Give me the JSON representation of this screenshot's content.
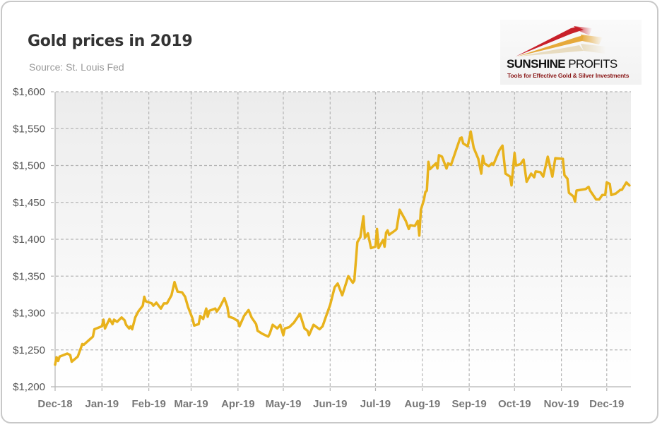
{
  "chart_data": {
    "type": "line",
    "title": "Gold prices in 2019",
    "subtitle": "Source: St. Louis Fed",
    "xlabel": "",
    "ylabel": "",
    "ylim": [
      1200,
      1600
    ],
    "xlim": [
      "2018-12-01",
      "2019-12-17"
    ],
    "y_ticks": [
      "$1,200",
      "$1,250",
      "$1,300",
      "$1,350",
      "$1,400",
      "$1,450",
      "$1,500",
      "$1,550",
      "$1,600"
    ],
    "y_tick_values": [
      1200,
      1250,
      1300,
      1350,
      1400,
      1450,
      1500,
      1550,
      1600
    ],
    "x_ticks": [
      "Dec-18",
      "Jan-19",
      "Feb-19",
      "Mar-19",
      "Apr-19",
      "May-19",
      "Jun-19",
      "Jul-19",
      "Aug-19",
      "Sep-19",
      "Oct-19",
      "Nov-19",
      "Dec-19"
    ],
    "x_tick_dates": [
      "2018-12-01",
      "2019-01-01",
      "2019-02-01",
      "2019-03-01",
      "2019-04-01",
      "2019-05-01",
      "2019-06-01",
      "2019-07-01",
      "2019-08-01",
      "2019-09-01",
      "2019-10-01",
      "2019-11-01",
      "2019-12-01"
    ],
    "grid": true,
    "legend": "none",
    "series_color": "#e8b21c",
    "series": [
      {
        "x": [
          "2018-12-01",
          "2018-12-02",
          "2018-12-03",
          "2018-12-04",
          "2018-12-09",
          "2018-12-11",
          "2018-12-12",
          "2018-12-16",
          "2018-12-19",
          "2018-12-20",
          "2018-12-26",
          "2018-12-27",
          "2019-01-01",
          "2019-01-02",
          "2019-01-03",
          "2019-01-06",
          "2019-01-08",
          "2019-01-09",
          "2019-01-11",
          "2019-01-14",
          "2019-01-16",
          "2019-01-17",
          "2019-01-19",
          "2019-01-20",
          "2019-01-21",
          "2019-01-23",
          "2019-01-25",
          "2019-01-28",
          "2019-01-29",
          "2019-01-30",
          "2019-02-03",
          "2019-02-04",
          "2019-02-06",
          "2019-02-09",
          "2019-02-11",
          "2019-02-13",
          "2019-02-16",
          "2019-02-18",
          "2019-02-20",
          "2019-02-23",
          "2019-02-25",
          "2019-02-27",
          "2019-03-02",
          "2019-03-03",
          "2019-03-06",
          "2019-03-07",
          "2019-03-09",
          "2019-03-11",
          "2019-03-12",
          "2019-03-13",
          "2019-03-17",
          "2019-03-18",
          "2019-03-20",
          "2019-03-23",
          "2019-03-25",
          "2019-03-26",
          "2019-03-29",
          "2019-04-01",
          "2019-04-02",
          "2019-04-05",
          "2019-04-08",
          "2019-04-10",
          "2019-04-13",
          "2019-04-14",
          "2019-04-17",
          "2019-04-21",
          "2019-04-22",
          "2019-04-24",
          "2019-04-27",
          "2019-04-29",
          "2019-05-01",
          "2019-05-02",
          "2019-05-05",
          "2019-05-08",
          "2019-05-12",
          "2019-05-15",
          "2019-05-17",
          "2019-05-18",
          "2019-05-21",
          "2019-05-25",
          "2019-05-27",
          "2019-05-29",
          "2019-06-01",
          "2019-06-04",
          "2019-06-06",
          "2019-06-09",
          "2019-06-13",
          "2019-06-16",
          "2019-06-17",
          "2019-06-19",
          "2019-06-21",
          "2019-06-23",
          "2019-06-24",
          "2019-06-26",
          "2019-06-28",
          "2019-07-01",
          "2019-07-02",
          "2019-07-03",
          "2019-07-06",
          "2019-07-07",
          "2019-07-08",
          "2019-07-09",
          "2019-07-10",
          "2019-07-14",
          "2019-07-15",
          "2019-07-17",
          "2019-07-21",
          "2019-07-23",
          "2019-07-24",
          "2019-07-27",
          "2019-07-29",
          "2019-07-30",
          "2019-07-31",
          "2019-08-02",
          "2019-08-03",
          "2019-08-04",
          "2019-08-05",
          "2019-08-06",
          "2019-08-10",
          "2019-08-11",
          "2019-08-12",
          "2019-08-14",
          "2019-08-17",
          "2019-08-18",
          "2019-08-20",
          "2019-08-26",
          "2019-08-27",
          "2019-08-28",
          "2019-08-31",
          "2019-09-02",
          "2019-09-04",
          "2019-09-07",
          "2019-09-09",
          "2019-09-10",
          "2019-09-11",
          "2019-09-14",
          "2019-09-16",
          "2019-09-17",
          "2019-09-21",
          "2019-09-23",
          "2019-09-25",
          "2019-09-28",
          "2019-09-29",
          "2019-10-01",
          "2019-10-02",
          "2019-10-05",
          "2019-10-07",
          "2019-10-09",
          "2019-10-12",
          "2019-10-14",
          "2019-10-15",
          "2019-10-18",
          "2019-10-20",
          "2019-10-21",
          "2019-10-23",
          "2019-10-26",
          "2019-10-28",
          "2019-11-02",
          "2019-11-03",
          "2019-11-05",
          "2019-11-06",
          "2019-11-09",
          "2019-11-10",
          "2019-11-11",
          "2019-11-17",
          "2019-11-19",
          "2019-11-20",
          "2019-11-24",
          "2019-11-26",
          "2019-11-28",
          "2019-11-30",
          "2019-12-01",
          "2019-12-03",
          "2019-12-04",
          "2019-12-07",
          "2019-12-10",
          "2019-12-11",
          "2019-12-14",
          "2019-12-16"
        ],
        "values": [
          1230,
          1240,
          1235,
          1241,
          1245,
          1243,
          1234,
          1241,
          1258,
          1257,
          1268,
          1278,
          1282,
          1291,
          1279,
          1292,
          1285,
          1291,
          1288,
          1294,
          1290,
          1284,
          1279,
          1282,
          1278,
          1294,
          1302,
          1310,
          1322,
          1316,
          1313,
          1310,
          1314,
          1306,
          1313,
          1313,
          1324,
          1342,
          1329,
          1328,
          1322,
          1308,
          1292,
          1283,
          1285,
          1296,
          1292,
          1306,
          1295,
          1303,
          1306,
          1302,
          1308,
          1320,
          1308,
          1295,
          1293,
          1289,
          1282,
          1296,
          1304,
          1294,
          1285,
          1276,
          1272,
          1268,
          1272,
          1284,
          1279,
          1284,
          1270,
          1279,
          1281,
          1287,
          1299,
          1279,
          1276,
          1270,
          1284,
          1278,
          1282,
          1294,
          1311,
          1335,
          1340,
          1324,
          1350,
          1341,
          1344,
          1396,
          1403,
          1431,
          1402,
          1408,
          1388,
          1390,
          1414,
          1388,
          1399,
          1390,
          1409,
          1412,
          1406,
          1412,
          1414,
          1440,
          1425,
          1414,
          1419,
          1418,
          1425,
          1405,
          1440,
          1453,
          1464,
          1466,
          1505,
          1495,
          1503,
          1496,
          1514,
          1512,
          1496,
          1503,
          1501,
          1537,
          1538,
          1530,
          1526,
          1546,
          1524,
          1509,
          1489,
          1513,
          1503,
          1499,
          1503,
          1501,
          1521,
          1527,
          1489,
          1485,
          1473,
          1517,
          1500,
          1502,
          1508,
          1478,
          1489,
          1484,
          1492,
          1491,
          1485,
          1494,
          1512,
          1485,
          1510,
          1509,
          1487,
          1482,
          1463,
          1458,
          1451,
          1466,
          1468,
          1471,
          1466,
          1454,
          1454,
          1460,
          1460,
          1477,
          1475,
          1460,
          1462,
          1467,
          1467,
          1477,
          1473
        ]
      }
    ]
  },
  "logo": {
    "name_bold": "SUNSHINE",
    "name_light": "PROFITS",
    "tagline": "Tools for Effective Gold & Silver Investments"
  }
}
